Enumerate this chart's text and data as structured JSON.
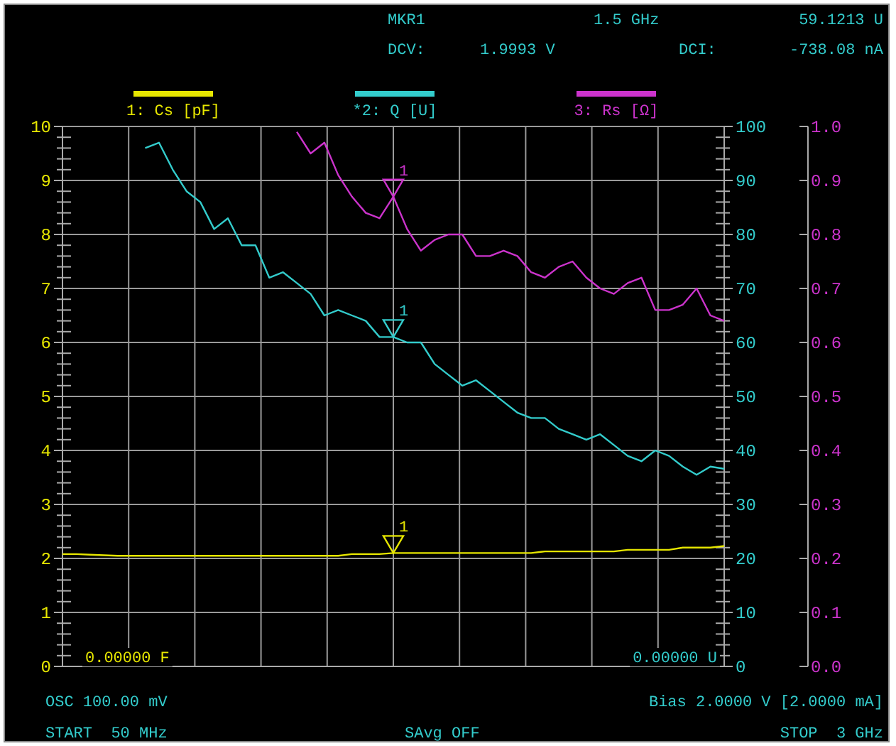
{
  "chart_data": {
    "type": "line",
    "categories": [
      null,
      null,
      null,
      null,
      null,
      null,
      null,
      null,
      null,
      null,
      null,
      null,
      null,
      null,
      null,
      null,
      null,
      null,
      null,
      null,
      null,
      null,
      null,
      null,
      null,
      null,
      null,
      null,
      null,
      null,
      null,
      null,
      null,
      null,
      null,
      null,
      null,
      null,
      null,
      null,
      null,
      null,
      null,
      null,
      null,
      null,
      null,
      null,
      null
    ],
    "ylim": [
      0,
      10
    ],
    "yticks": [
      0,
      {
        "value": 0.2,
        "label": null
      },
      {
        "value": 0.4,
        "label": null
      },
      {
        "value": 0.6,
        "label": null
      },
      {
        "value": 0.8,
        "label": null
      },
      1,
      {
        "value": 1.2,
        "label": null
      },
      {
        "value": 1.4,
        "label": null
      },
      {
        "value": 1.6,
        "label": null
      },
      {
        "value": 1.8,
        "label": null
      },
      2,
      {
        "value": 2.2,
        "label": null
      },
      {
        "value": 2.4,
        "label": null
      },
      {
        "value": 2.6,
        "label": null
      },
      {
        "value": 2.8,
        "label": null
      },
      3,
      {
        "value": 3.2,
        "label": null
      },
      {
        "value": 3.4,
        "label": null
      },
      {
        "value": 3.6,
        "label": null
      },
      {
        "value": 3.8,
        "label": null
      },
      4,
      {
        "value": 4.2,
        "label": null
      },
      {
        "value": 4.4,
        "label": null
      },
      {
        "value": 4.6,
        "label": null
      },
      {
        "value": 4.8,
        "label": null
      },
      5,
      {
        "value": 5.2,
        "label": null
      },
      {
        "value": 5.4,
        "label": null
      },
      {
        "value": 5.6,
        "label": null
      },
      {
        "value": 5.8,
        "label": null
      },
      6,
      {
        "value": 6.2,
        "label": null
      },
      {
        "value": 6.4,
        "label": null
      },
      {
        "value": 6.6,
        "label": null
      },
      {
        "value": 6.8,
        "label": null
      },
      7,
      {
        "value": 7.2,
        "label": null
      },
      {
        "value": 7.4,
        "label": null
      },
      {
        "value": 7.6,
        "label": null
      },
      {
        "value": 7.8,
        "label": null
      },
      8,
      {
        "value": 8.2,
        "label": null
      },
      {
        "value": 8.4,
        "label": null
      },
      {
        "value": 8.6,
        "label": null
      },
      {
        "value": 8.8,
        "label": null
      },
      9,
      {
        "value": 9.2,
        "label": null
      },
      {
        "value": 9.4,
        "label": null
      },
      {
        "value": 9.6,
        "label": null
      },
      {
        "value": 9.8,
        "label": null
      },
      10
    ],
    "y2lim": [
      0,
      100
    ],
    "y2ticks": [
      0,
      {
        "value": 2,
        "label": null
      },
      {
        "value": 4,
        "label": null
      },
      {
        "value": 6,
        "label": null
      },
      {
        "value": 8,
        "label": null
      },
      10,
      {
        "value": 12,
        "label": null
      },
      {
        "value": 14,
        "label": null
      },
      {
        "value": 16,
        "label": null
      },
      {
        "value": 18,
        "label": null
      },
      20,
      {
        "value": 22,
        "label": null
      },
      {
        "value": 24,
        "label": null
      },
      {
        "value": 26,
        "label": null
      },
      {
        "value": 28,
        "label": null
      },
      30,
      {
        "value": 32,
        "label": null
      },
      {
        "value": 34,
        "label": null
      },
      {
        "value": 36,
        "label": null
      },
      {
        "value": 38,
        "label": null
      },
      40,
      {
        "value": 42,
        "label": null
      },
      {
        "value": 44,
        "label": null
      },
      {
        "value": 46,
        "label": null
      },
      {
        "value": 48,
        "label": null
      },
      50,
      {
        "value": 52,
        "label": null
      },
      {
        "value": 54,
        "label": null
      },
      {
        "value": 56,
        "label": null
      },
      {
        "value": 58,
        "label": null
      },
      60,
      {
        "value": 62,
        "label": null
      },
      {
        "value": 64,
        "label": null
      },
      {
        "value": 66,
        "label": null
      },
      {
        "value": 68,
        "label": null
      },
      70,
      {
        "value": 72,
        "label": null
      },
      {
        "value": 74,
        "label": null
      },
      {
        "value": 76,
        "label": null
      },
      {
        "value": 78,
        "label": null
      },
      80,
      {
        "value": 82,
        "label": null
      },
      {
        "value": 84,
        "label": null
      },
      {
        "value": 86,
        "label": null
      },
      {
        "value": 88,
        "label": null
      },
      90,
      {
        "value": 92,
        "label": null
      },
      {
        "value": 94,
        "label": null
      },
      {
        "value": 96,
        "label": null
      },
      {
        "value": 98,
        "label": null
      },
      100
    ],
    "y3lim": [
      0,
      1
    ],
    "y3ticks": [
      {
        "value": 0,
        "label": "0.0"
      },
      {
        "value": 0.1,
        "label": "0.1"
      },
      {
        "value": 0.2,
        "label": "0.2"
      },
      {
        "value": 0.3,
        "label": "0.3"
      },
      {
        "value": 0.4,
        "label": "0.4"
      },
      {
        "value": 0.5,
        "label": "0.5"
      },
      {
        "value": 0.6,
        "label": "0.6"
      },
      {
        "value": 0.7,
        "label": "0.7"
      },
      {
        "value": 0.8,
        "label": "0.8"
      },
      {
        "value": 0.9,
        "label": "0.9"
      },
      {
        "value": 1,
        "label": "1.0"
      }
    ],
    "grid": true,
    "legend": "top",
    "line_style": "solid",
    "marker": "none",
    "series": [
      {
        "name": "1: Cs [pF]",
        "color": "#e6e600",
        "values": [
          2.08,
          2.08,
          2.07,
          2.06,
          2.05,
          2.05,
          2.05,
          2.05,
          2.05,
          2.05,
          2.05,
          2.05,
          2.05,
          2.05,
          2.05,
          2.05,
          2.05,
          2.05,
          2.05,
          2.05,
          2.05,
          2.08,
          2.08,
          2.08,
          2.1,
          2.1,
          2.1,
          2.1,
          2.1,
          2.1,
          2.1,
          2.1,
          2.1,
          2.1,
          2.1,
          2.13,
          2.13,
          2.13,
          2.13,
          2.13,
          2.13,
          2.16,
          2.16,
          2.16,
          2.16,
          2.2,
          2.2,
          2.2,
          2.23
        ]
      },
      {
        "name": "*2: Q [U]",
        "color": "#33cccc",
        "axis": "y2",
        "values": [
          null,
          null,
          null,
          null,
          null,
          null,
          96,
          97,
          92,
          88,
          86,
          81,
          83,
          78,
          78,
          72,
          73,
          71,
          69,
          65,
          66,
          65,
          64,
          61,
          61,
          60,
          60,
          56,
          54,
          52,
          53,
          51,
          49,
          47,
          46,
          46,
          44,
          43,
          42,
          43,
          41,
          39,
          38,
          40,
          39,
          37,
          35.5,
          37,
          36.6
        ]
      },
      {
        "name": "3: Rs [Ω]",
        "color": "#cc33cc",
        "axis": "y3",
        "values": [
          null,
          null,
          null,
          null,
          null,
          null,
          null,
          null,
          null,
          null,
          null,
          null,
          null,
          null,
          null,
          null,
          null,
          0.99,
          0.95,
          0.97,
          0.91,
          0.87,
          0.84,
          0.83,
          0.87,
          0.81,
          0.77,
          0.79,
          0.8,
          0.8,
          0.76,
          0.76,
          0.77,
          0.76,
          0.73,
          0.72,
          0.74,
          0.75,
          0.72,
          0.7,
          0.69,
          0.71,
          0.72,
          0.66,
          0.66,
          0.67,
          0.7,
          0.65,
          0.64
        ]
      }
    ],
    "annotations": [
      "MKR1",
      "1.5 GHz",
      "59.1213 U",
      "DCV:",
      "1.9993 V",
      "DCI:",
      "-738.08 nA",
      "0.00000 F",
      "0.00000 U",
      "OSC 100.00 mV",
      "Bias 2.0000 V [2.0000 mA]",
      "START  50 MHz",
      "SAvg OFF",
      "STOP  3 GHz",
      "1",
      "1",
      "1"
    ]
  }
}
